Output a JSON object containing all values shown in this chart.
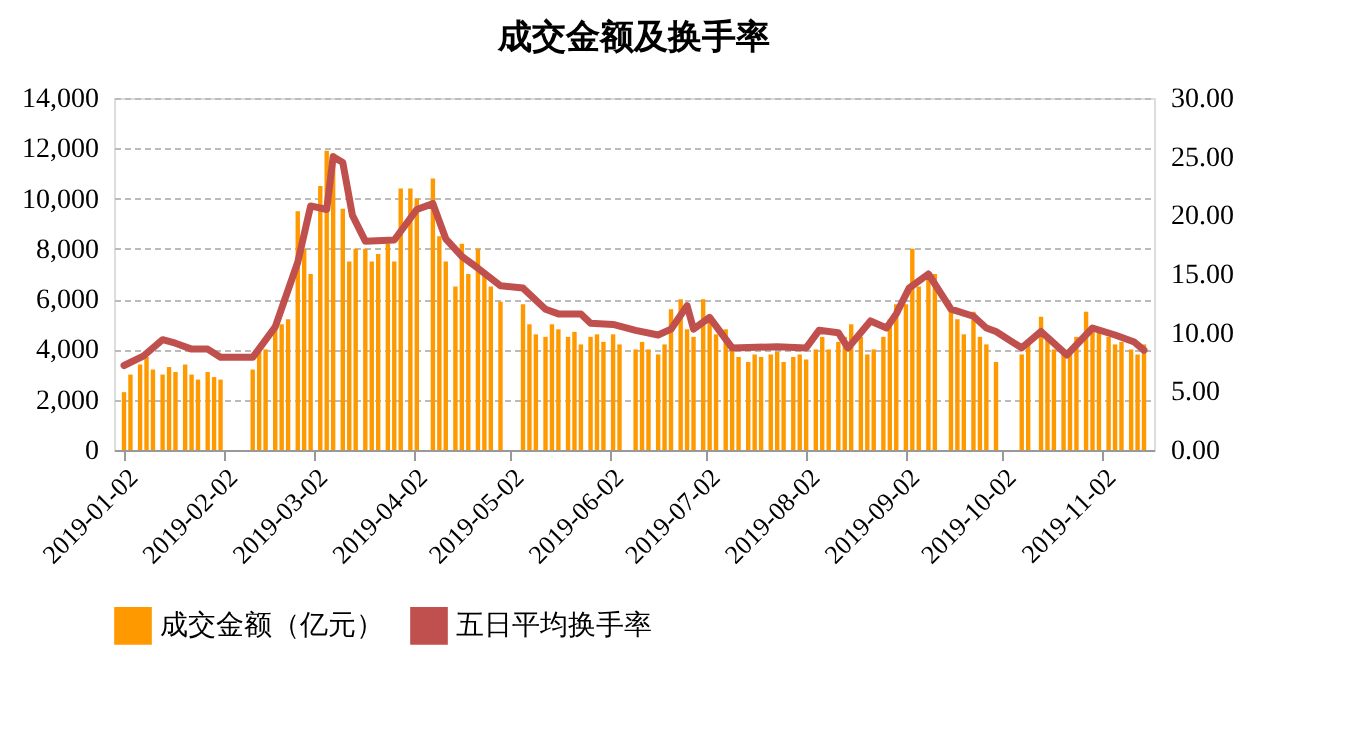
{
  "chart_data": {
    "type": "bar",
    "title": "成交金额及换手率",
    "legend": "bottom",
    "grid": "y",
    "xlim": [
      "2019-01-02",
      "2019-11-15"
    ],
    "xticks": [
      "2019-01-02",
      "2019-02-02",
      "2019-03-02",
      "2019-04-02",
      "2019-05-02",
      "2019-06-02",
      "2019-07-02",
      "2019-08-02",
      "2019-09-02",
      "2019-10-02",
      "2019-11-02"
    ],
    "ylim": [
      0,
      14000
    ],
    "yticks": [
      {
        "value": 0,
        "label": "0"
      },
      {
        "value": 2000,
        "label": "2,000"
      },
      {
        "value": 4000,
        "label": "4,000"
      },
      {
        "value": 6000,
        "label": "6,000"
      },
      {
        "value": 8000,
        "label": "8,000"
      },
      {
        "value": 10000,
        "label": "10,000"
      },
      {
        "value": 12000,
        "label": "12,000"
      },
      {
        "value": 14000,
        "label": "14,000"
      }
    ],
    "y2lim": [
      0,
      30
    ],
    "y2ticks": [
      {
        "value": 0,
        "label": "0.00"
      },
      {
        "value": 5,
        "label": "5.00"
      },
      {
        "value": 10,
        "label": "10.00"
      },
      {
        "value": 15,
        "label": "15.00"
      },
      {
        "value": 20,
        "label": "20.00"
      },
      {
        "value": 25,
        "label": "25.00"
      },
      {
        "value": 30,
        "label": "30.00"
      }
    ],
    "series": [
      {
        "name": "成交金额（亿元）",
        "color": "#ff9900",
        "x": [
          "2019-01-02",
          "2019-01-04",
          "2019-01-07",
          "2019-01-09",
          "2019-01-11",
          "2019-01-14",
          "2019-01-16",
          "2019-01-18",
          "2019-01-21",
          "2019-01-23",
          "2019-01-25",
          "2019-01-28",
          "2019-01-30",
          "2019-02-01",
          "2019-02-11",
          "2019-02-13",
          "2019-02-15",
          "2019-02-18",
          "2019-02-20",
          "2019-02-22",
          "2019-02-25",
          "2019-02-27",
          "2019-03-01",
          "2019-03-04",
          "2019-03-06",
          "2019-03-08",
          "2019-03-11",
          "2019-03-13",
          "2019-03-15",
          "2019-03-18",
          "2019-03-20",
          "2019-03-22",
          "2019-03-25",
          "2019-03-27",
          "2019-03-29",
          "2019-04-01",
          "2019-04-03",
          "2019-04-08",
          "2019-04-10",
          "2019-04-12",
          "2019-04-15",
          "2019-04-17",
          "2019-04-19",
          "2019-04-22",
          "2019-04-24",
          "2019-04-26",
          "2019-04-29",
          "2019-05-06",
          "2019-05-08",
          "2019-05-10",
          "2019-05-13",
          "2019-05-15",
          "2019-05-17",
          "2019-05-20",
          "2019-05-22",
          "2019-05-24",
          "2019-05-27",
          "2019-05-29",
          "2019-05-31",
          "2019-06-03",
          "2019-06-05",
          "2019-06-10",
          "2019-06-12",
          "2019-06-14",
          "2019-06-17",
          "2019-06-19",
          "2019-06-21",
          "2019-06-24",
          "2019-06-26",
          "2019-06-28",
          "2019-07-01",
          "2019-07-03",
          "2019-07-05",
          "2019-07-08",
          "2019-07-10",
          "2019-07-12",
          "2019-07-15",
          "2019-07-17",
          "2019-07-19",
          "2019-07-22",
          "2019-07-24",
          "2019-07-26",
          "2019-07-29",
          "2019-07-31",
          "2019-08-02",
          "2019-08-05",
          "2019-08-07",
          "2019-08-09",
          "2019-08-12",
          "2019-08-14",
          "2019-08-16",
          "2019-08-19",
          "2019-08-21",
          "2019-08-23",
          "2019-08-26",
          "2019-08-28",
          "2019-08-30",
          "2019-09-02",
          "2019-09-04",
          "2019-09-06",
          "2019-09-09",
          "2019-09-11",
          "2019-09-16",
          "2019-09-18",
          "2019-09-20",
          "2019-09-23",
          "2019-09-25",
          "2019-09-27",
          "2019-09-30",
          "2019-10-08",
          "2019-10-10",
          "2019-10-14",
          "2019-10-16",
          "2019-10-18",
          "2019-10-21",
          "2019-10-23",
          "2019-10-25",
          "2019-10-28",
          "2019-10-30",
          "2019-11-01",
          "2019-11-04",
          "2019-11-06",
          "2019-11-08",
          "2019-11-11",
          "2019-11-13",
          "2019-11-15"
        ],
        "values": [
          2300,
          3000,
          3400,
          3700,
          3200,
          3000,
          3300,
          3100,
          3400,
          3000,
          2800,
          3100,
          2900,
          2800,
          3200,
          4000,
          4000,
          5000,
          5000,
          5200,
          9500,
          8000,
          7000,
          10500,
          11900,
          11800,
          9600,
          7500,
          8000,
          8000,
          7500,
          7800,
          8200,
          7500,
          10400,
          10400,
          10000,
          10800,
          8500,
          7500,
          6500,
          8200,
          7000,
          8000,
          7000,
          6500,
          5900,
          5800,
          5000,
          4600,
          4500,
          5000,
          4800,
          4500,
          4700,
          4200,
          4500,
          4600,
          4300,
          4600,
          4200,
          4000,
          4300,
          4000,
          3800,
          4200,
          5600,
          6000,
          4800,
          4500,
          6000,
          5200,
          4600,
          4800,
          4200,
          3700,
          3500,
          3800,
          3700,
          3800,
          3900,
          3500,
          3700,
          3800,
          3600,
          4000,
          4500,
          4000,
          4300,
          4500,
          5000,
          4500,
          3800,
          4000,
          4500,
          5200,
          5800,
          5800,
          8000,
          6500,
          6800,
          7000,
          5600,
          5200,
          4600,
          5500,
          4500,
          4200,
          3500,
          3800,
          4200,
          5300,
          4500,
          4000,
          3900,
          4000,
          4500,
          5500,
          4800,
          4800,
          4500,
          4200,
          4300,
          4000,
          3800,
          4200
        ]
      },
      {
        "name": "五日平均换手率",
        "type": "line",
        "axis": "y2",
        "color": "#c0504d",
        "x": [
          "2019-01-02",
          "2019-01-08",
          "2019-01-14",
          "2019-01-18",
          "2019-01-23",
          "2019-01-28",
          "2019-02-01",
          "2019-02-11",
          "2019-02-18",
          "2019-02-25",
          "2019-03-01",
          "2019-03-06",
          "2019-03-08",
          "2019-03-11",
          "2019-03-14",
          "2019-03-18",
          "2019-03-27",
          "2019-04-03",
          "2019-04-08",
          "2019-04-12",
          "2019-04-17",
          "2019-04-22",
          "2019-04-29",
          "2019-05-06",
          "2019-05-13",
          "2019-05-17",
          "2019-05-24",
          "2019-05-27",
          "2019-06-03",
          "2019-06-10",
          "2019-06-17",
          "2019-06-21",
          "2019-06-26",
          "2019-06-28",
          "2019-07-03",
          "2019-07-10",
          "2019-07-24",
          "2019-08-02",
          "2019-08-06",
          "2019-08-12",
          "2019-08-15",
          "2019-08-22",
          "2019-08-27",
          "2019-08-30",
          "2019-09-03",
          "2019-09-09",
          "2019-09-16",
          "2019-09-23",
          "2019-09-27",
          "2019-09-30",
          "2019-10-08",
          "2019-10-14",
          "2019-10-22",
          "2019-10-30",
          "2019-11-06",
          "2019-11-12",
          "2019-11-15"
        ],
        "values": [
          7.2,
          8.0,
          9.4,
          9.1,
          8.6,
          8.6,
          7.9,
          7.9,
          10.5,
          16.0,
          20.8,
          20.5,
          25.0,
          24.5,
          20.0,
          17.8,
          17.9,
          20.5,
          21.0,
          18.0,
          16.5,
          15.5,
          14.0,
          13.8,
          12.0,
          11.6,
          11.6,
          10.8,
          10.7,
          10.2,
          9.8,
          10.3,
          12.3,
          10.3,
          11.3,
          8.7,
          8.8,
          8.7,
          10.2,
          10.0,
          8.7,
          11.0,
          10.4,
          11.6,
          13.8,
          15.0,
          12.0,
          11.4,
          10.4,
          10.1,
          8.7,
          10.1,
          8.1,
          10.4,
          9.8,
          9.2,
          8.5
        ]
      }
    ]
  }
}
